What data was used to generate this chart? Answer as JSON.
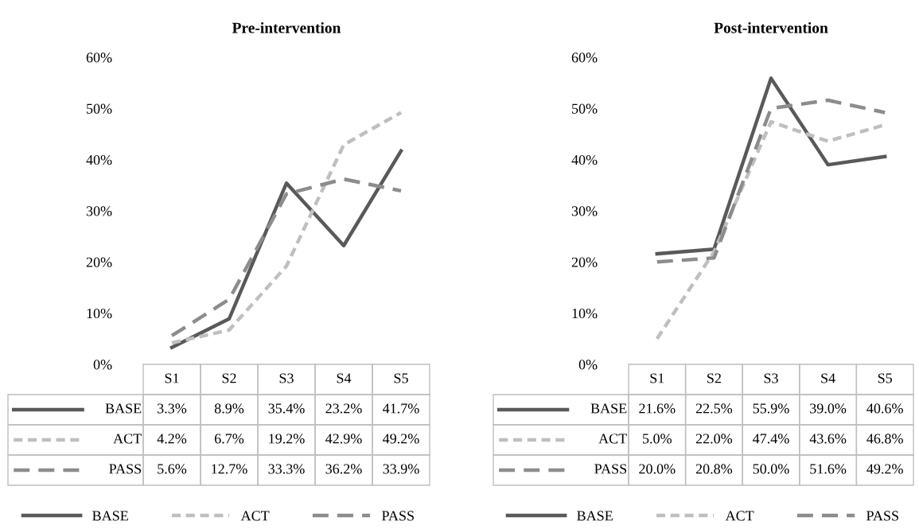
{
  "chart_data": [
    {
      "type": "line",
      "title": "Pre-intervention",
      "categories": [
        "S1",
        "S2",
        "S3",
        "S4",
        "S5"
      ],
      "ylim": [
        0,
        60
      ],
      "yticks": [
        {
          "value": 0,
          "label": "0%"
        },
        {
          "value": 10,
          "label": "10%"
        },
        {
          "value": 20,
          "label": "20%"
        },
        {
          "value": 30,
          "label": "30%"
        },
        {
          "value": 40,
          "label": "40%"
        },
        {
          "value": 50,
          "label": "50%"
        },
        {
          "value": 60,
          "label": "60%"
        }
      ],
      "grid": false,
      "legend": "bottom",
      "marker": "none",
      "series": [
        {
          "name": "BASE",
          "color": "#595959",
          "line_style": "solid",
          "values": [
            3.3,
            8.9,
            35.4,
            23.2,
            41.7
          ],
          "value_labels": [
            "3.3%",
            "8.9%",
            "35.4%",
            "23.2%",
            "41.7%"
          ]
        },
        {
          "name": "ACT",
          "color": "#bfbfbf",
          "line_style": "dashed",
          "values": [
            4.2,
            6.7,
            19.2,
            42.9,
            49.2
          ],
          "value_labels": [
            "4.2%",
            "6.7%",
            "19.2%",
            "42.9%",
            "49.2%"
          ]
        },
        {
          "name": "PASS",
          "color": "#8c8c8c",
          "line_style": "dashed",
          "values": [
            5.6,
            12.7,
            33.3,
            36.2,
            33.9
          ],
          "value_labels": [
            "5.6%",
            "12.7%",
            "33.3%",
            "36.2%",
            "33.9%"
          ]
        }
      ]
    },
    {
      "type": "line",
      "title": "Post-intervention",
      "categories": [
        "S1",
        "S2",
        "S3",
        "S4",
        "S5"
      ],
      "ylim": [
        0,
        60
      ],
      "yticks": [
        {
          "value": 0,
          "label": "0%"
        },
        {
          "value": 10,
          "label": "10%"
        },
        {
          "value": 20,
          "label": "20%"
        },
        {
          "value": 30,
          "label": "30%"
        },
        {
          "value": 40,
          "label": "40%"
        },
        {
          "value": 50,
          "label": "50%"
        },
        {
          "value": 60,
          "label": "60%"
        }
      ],
      "grid": false,
      "legend": "bottom",
      "marker": "none",
      "series": [
        {
          "name": "BASE",
          "color": "#595959",
          "line_style": "solid",
          "values": [
            21.6,
            22.5,
            55.9,
            39.0,
            40.6
          ],
          "value_labels": [
            "21.6%",
            "22.5%",
            "55.9%",
            "39.0%",
            "40.6%"
          ]
        },
        {
          "name": "ACT",
          "color": "#bfbfbf",
          "line_style": "dashed",
          "values": [
            5.0,
            22.0,
            47.4,
            43.6,
            46.8
          ],
          "value_labels": [
            "5.0%",
            "22.0%",
            "47.4%",
            "43.6%",
            "46.8%"
          ]
        },
        {
          "name": "PASS",
          "color": "#8c8c8c",
          "line_style": "dashed",
          "values": [
            20.0,
            20.8,
            50.0,
            51.6,
            49.2
          ],
          "value_labels": [
            "20.0%",
            "20.8%",
            "50.0%",
            "51.6%",
            "49.2%"
          ]
        }
      ]
    }
  ]
}
